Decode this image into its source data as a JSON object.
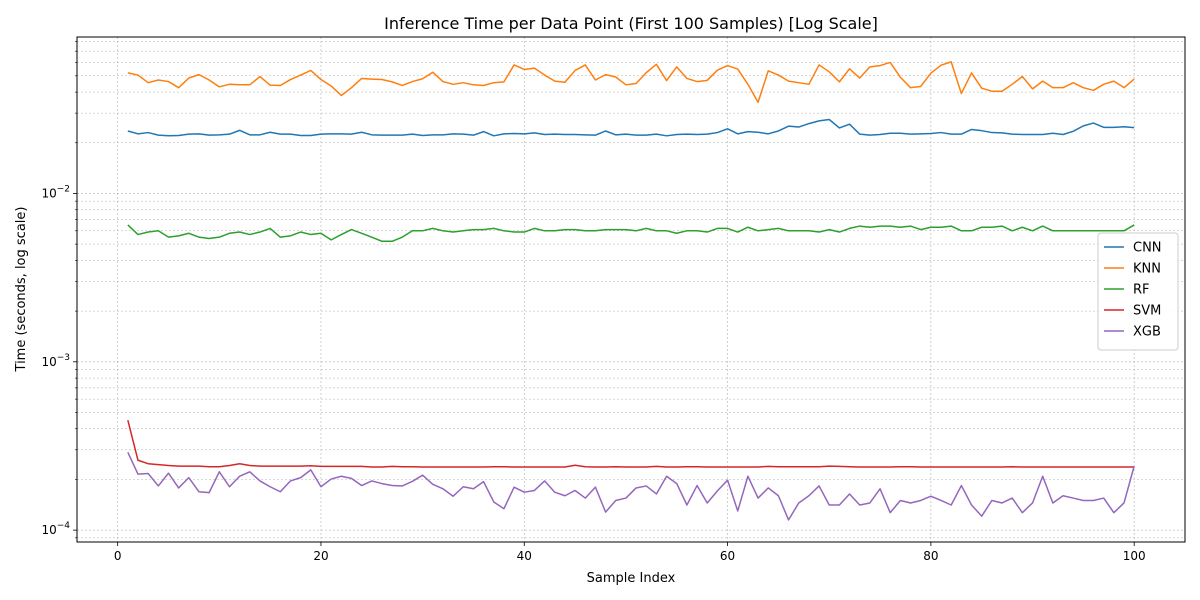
{
  "chart_data": {
    "type": "line",
    "title": "Inference Time per Data Point (First 100 Samples) [Log Scale]",
    "xlabel": "Sample Index",
    "ylabel": "Time (seconds, log scale)",
    "xlim": [
      -4,
      105
    ],
    "ylim": [
      8.5e-05,
      0.085
    ],
    "yscale": "log",
    "x_ticks": [
      0,
      20,
      40,
      60,
      80,
      100
    ],
    "y_ticks": [
      {
        "value": 0.0001,
        "base": "10",
        "exp": "−4"
      },
      {
        "value": 0.001,
        "base": "10",
        "exp": "−3"
      },
      {
        "value": 0.01,
        "base": "10",
        "exp": "−2"
      }
    ],
    "grid": true,
    "legend_position": "center-right",
    "x": [
      1,
      2,
      3,
      4,
      5,
      6,
      7,
      8,
      9,
      10,
      11,
      12,
      13,
      14,
      15,
      16,
      17,
      18,
      19,
      20,
      21,
      22,
      23,
      24,
      25,
      26,
      27,
      28,
      29,
      30,
      31,
      32,
      33,
      34,
      35,
      36,
      37,
      38,
      39,
      40,
      41,
      42,
      43,
      44,
      45,
      46,
      47,
      48,
      49,
      50,
      51,
      52,
      53,
      54,
      55,
      56,
      57,
      58,
      59,
      60,
      61,
      62,
      63,
      64,
      65,
      66,
      67,
      68,
      69,
      70,
      71,
      72,
      73,
      74,
      75,
      76,
      77,
      78,
      79,
      80,
      81,
      82,
      83,
      84,
      85,
      86,
      87,
      88,
      89,
      90,
      91,
      92,
      93,
      94,
      95,
      96,
      97,
      98,
      99,
      100
    ],
    "series": [
      {
        "name": "CNN",
        "color": "#1f77b4",
        "values": [
          0.0235,
          0.0226,
          0.023,
          0.0222,
          0.022,
          0.0221,
          0.0225,
          0.0226,
          0.0222,
          0.0223,
          0.0225,
          0.0237,
          0.0223,
          0.0223,
          0.0231,
          0.0225,
          0.0225,
          0.0221,
          0.0221,
          0.0225,
          0.0226,
          0.0226,
          0.0225,
          0.0231,
          0.0223,
          0.0222,
          0.0222,
          0.0222,
          0.0225,
          0.0221,
          0.0223,
          0.0223,
          0.0226,
          0.0225,
          0.0222,
          0.0233,
          0.022,
          0.0226,
          0.0227,
          0.0226,
          0.0229,
          0.0224,
          0.0225,
          0.0224,
          0.0224,
          0.0223,
          0.0222,
          0.0235,
          0.0223,
          0.0225,
          0.0222,
          0.0222,
          0.0225,
          0.022,
          0.0224,
          0.0225,
          0.0224,
          0.0225,
          0.023,
          0.0242,
          0.0226,
          0.0233,
          0.0231,
          0.0226,
          0.0235,
          0.0251,
          0.0248,
          0.026,
          0.027,
          0.0275,
          0.0245,
          0.0258,
          0.0225,
          0.0222,
          0.0224,
          0.0228,
          0.0228,
          0.0225,
          0.0226,
          0.0227,
          0.023,
          0.0225,
          0.0225,
          0.024,
          0.0236,
          0.023,
          0.0229,
          0.0225,
          0.0224,
          0.0224,
          0.0224,
          0.0228,
          0.0224,
          0.0234,
          0.0252,
          0.0262,
          0.0247,
          0.0247,
          0.0249,
          0.0246
        ]
      },
      {
        "name": "KNN",
        "color": "#ff7f0e",
        "values": [
          0.052,
          0.0505,
          0.0455,
          0.0472,
          0.0462,
          0.0425,
          0.0485,
          0.0508,
          0.0472,
          0.043,
          0.0445,
          0.0442,
          0.0442,
          0.0495,
          0.044,
          0.0438,
          0.0475,
          0.0505,
          0.0538,
          0.0475,
          0.0435,
          0.0382,
          0.0425,
          0.0482,
          0.0478,
          0.0475,
          0.046,
          0.0438,
          0.0462,
          0.048,
          0.0525,
          0.0462,
          0.0445,
          0.0455,
          0.0442,
          0.0438,
          0.0455,
          0.046,
          0.058,
          0.0545,
          0.0555,
          0.0505,
          0.0465,
          0.0458,
          0.0538,
          0.058,
          0.0472,
          0.0508,
          0.0492,
          0.0442,
          0.045,
          0.0522,
          0.0585,
          0.0468,
          0.0565,
          0.0482,
          0.0462,
          0.047,
          0.054,
          0.0575,
          0.0548,
          0.0445,
          0.0348,
          0.0535,
          0.0505,
          0.0465,
          0.0455,
          0.0445,
          0.058,
          0.0528,
          0.046,
          0.055,
          0.0485,
          0.0565,
          0.0575,
          0.06,
          0.049,
          0.0425,
          0.0432,
          0.0518,
          0.0578,
          0.0605,
          0.0392,
          0.052,
          0.0422,
          0.0405,
          0.0405,
          0.0445,
          0.0495,
          0.0418,
          0.0465,
          0.0425,
          0.0425,
          0.0455,
          0.0425,
          0.041,
          0.0445,
          0.0465,
          0.0425,
          0.0478
        ]
      },
      {
        "name": "RF",
        "color": "#2ca02c",
        "values": [
          0.0065,
          0.0057,
          0.0059,
          0.006,
          0.0055,
          0.0056,
          0.0058,
          0.0055,
          0.0054,
          0.0055,
          0.0058,
          0.0059,
          0.0057,
          0.0059,
          0.0062,
          0.0055,
          0.0056,
          0.0059,
          0.0057,
          0.0058,
          0.0053,
          0.0057,
          0.0061,
          0.0058,
          0.0055,
          0.0052,
          0.0052,
          0.0055,
          0.006,
          0.006,
          0.0062,
          0.006,
          0.0059,
          0.006,
          0.0061,
          0.0061,
          0.0062,
          0.006,
          0.0059,
          0.0059,
          0.0062,
          0.006,
          0.006,
          0.0061,
          0.0061,
          0.006,
          0.006,
          0.0061,
          0.0061,
          0.0061,
          0.006,
          0.0062,
          0.006,
          0.006,
          0.0058,
          0.006,
          0.006,
          0.0059,
          0.0062,
          0.0062,
          0.0059,
          0.0063,
          0.006,
          0.0061,
          0.0062,
          0.006,
          0.006,
          0.006,
          0.0059,
          0.0061,
          0.0059,
          0.0062,
          0.0064,
          0.0063,
          0.0064,
          0.0064,
          0.0063,
          0.0064,
          0.0061,
          0.0063,
          0.0063,
          0.0064,
          0.006,
          0.006,
          0.0063,
          0.0063,
          0.0064,
          0.006,
          0.0063,
          0.006,
          0.0064,
          0.006,
          0.006,
          0.006,
          0.006,
          0.006,
          0.006,
          0.006,
          0.006,
          0.0065
        ]
      },
      {
        "name": "SVM",
        "color": "#d62728",
        "values": [
          0.00045,
          0.00026,
          0.000248,
          0.000245,
          0.000242,
          0.00024,
          0.00024,
          0.00024,
          0.000238,
          0.000238,
          0.000242,
          0.000248,
          0.000242,
          0.00024,
          0.00024,
          0.00024,
          0.00024,
          0.00024,
          0.000241,
          0.000239,
          0.000239,
          0.000239,
          0.000239,
          0.000239,
          0.000237,
          0.000237,
          0.000239,
          0.000238,
          0.000238,
          0.000237,
          0.000237,
          0.000237,
          0.000237,
          0.000237,
          0.000237,
          0.000237,
          0.000238,
          0.000238,
          0.000237,
          0.000237,
          0.000237,
          0.000237,
          0.000237,
          0.000237,
          0.000243,
          0.000238,
          0.000237,
          0.000237,
          0.000238,
          0.000237,
          0.000237,
          0.000237,
          0.000239,
          0.000237,
          0.000237,
          0.000238,
          0.000238,
          0.000237,
          0.000237,
          0.000237,
          0.000237,
          0.000237,
          0.000237,
          0.000239,
          0.000238,
          0.000238,
          0.000238,
          0.000238,
          0.000238,
          0.00024,
          0.000239,
          0.000238,
          0.000237,
          0.000237,
          0.000237,
          0.000237,
          0.000238,
          0.000238,
          0.000237,
          0.000237,
          0.000237,
          0.000237,
          0.000237,
          0.000237,
          0.000237,
          0.000237,
          0.000237,
          0.000238,
          0.000237,
          0.000237,
          0.000237,
          0.000237,
          0.000237,
          0.000237,
          0.000237,
          0.000237,
          0.000237,
          0.000237,
          0.000237,
          0.000237
        ]
      },
      {
        "name": "XGB",
        "color": "#9467bd",
        "values": [
          0.00029,
          0.000215,
          0.000217,
          0.000183,
          0.000218,
          0.000178,
          0.000205,
          0.000169,
          0.000167,
          0.000222,
          0.000181,
          0.000209,
          0.000222,
          0.000196,
          0.000181,
          0.000169,
          0.000196,
          0.000205,
          0.000228,
          0.000181,
          0.000201,
          0.000209,
          0.000203,
          0.000184,
          0.000196,
          0.000189,
          0.000184,
          0.000183,
          0.000195,
          0.000212,
          0.000187,
          0.000176,
          0.000159,
          0.000181,
          0.000176,
          0.000194,
          0.000147,
          0.000134,
          0.00018,
          0.000168,
          0.000172,
          0.000196,
          0.000168,
          0.00016,
          0.000172,
          0.000155,
          0.00018,
          0.000128,
          0.00015,
          0.000155,
          0.000178,
          0.000183,
          0.000164,
          0.000209,
          0.000189,
          0.000141,
          0.000184,
          0.000145,
          0.000171,
          0.000198,
          0.00013,
          0.000209,
          0.000155,
          0.000178,
          0.00016,
          0.000115,
          0.000145,
          0.00016,
          0.000183,
          0.000141,
          0.000141,
          0.000164,
          0.000141,
          0.000145,
          0.000176,
          0.000127,
          0.00015,
          0.000145,
          0.00015,
          0.000159,
          0.00015,
          0.000141,
          0.000184,
          0.000141,
          0.000121,
          0.00015,
          0.000145,
          0.000155,
          0.000127,
          0.000145,
          0.000209,
          0.000145,
          0.00016,
          0.000155,
          0.00015,
          0.00015,
          0.000155,
          0.000127,
          0.000145,
          0.00024
        ]
      }
    ]
  }
}
